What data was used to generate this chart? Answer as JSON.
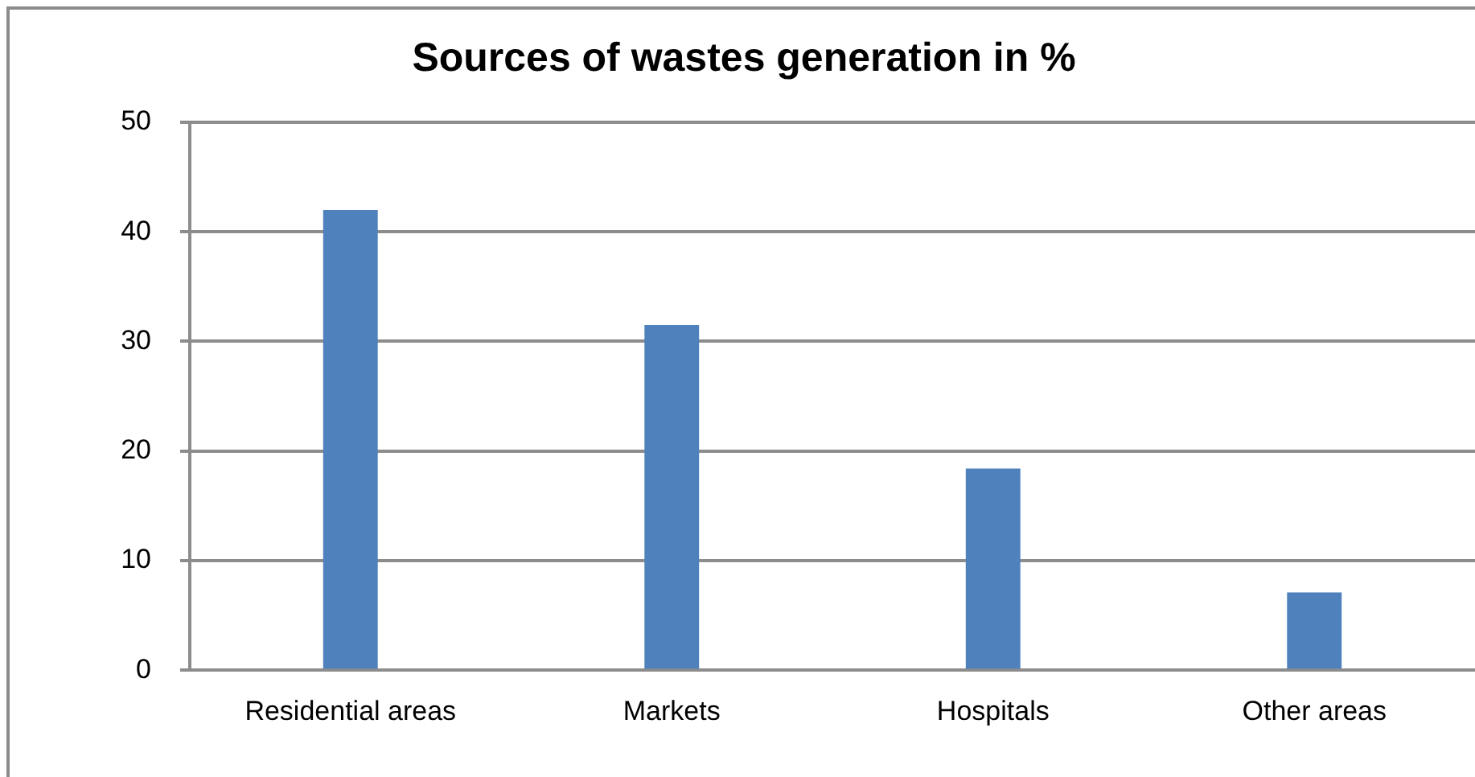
{
  "chart_data": {
    "type": "bar",
    "title": "Sources of wastes generation in %",
    "categories": [
      "Residential areas",
      "Markets",
      "Hospitals",
      "Other areas"
    ],
    "values": [
      42.0,
      31.5,
      18.4,
      7.1
    ],
    "color": "#4f81bd",
    "ylim": [
      0,
      50
    ],
    "yticks": [
      0,
      10,
      20,
      30,
      40,
      50
    ],
    "grid": "y",
    "legend": false
  }
}
